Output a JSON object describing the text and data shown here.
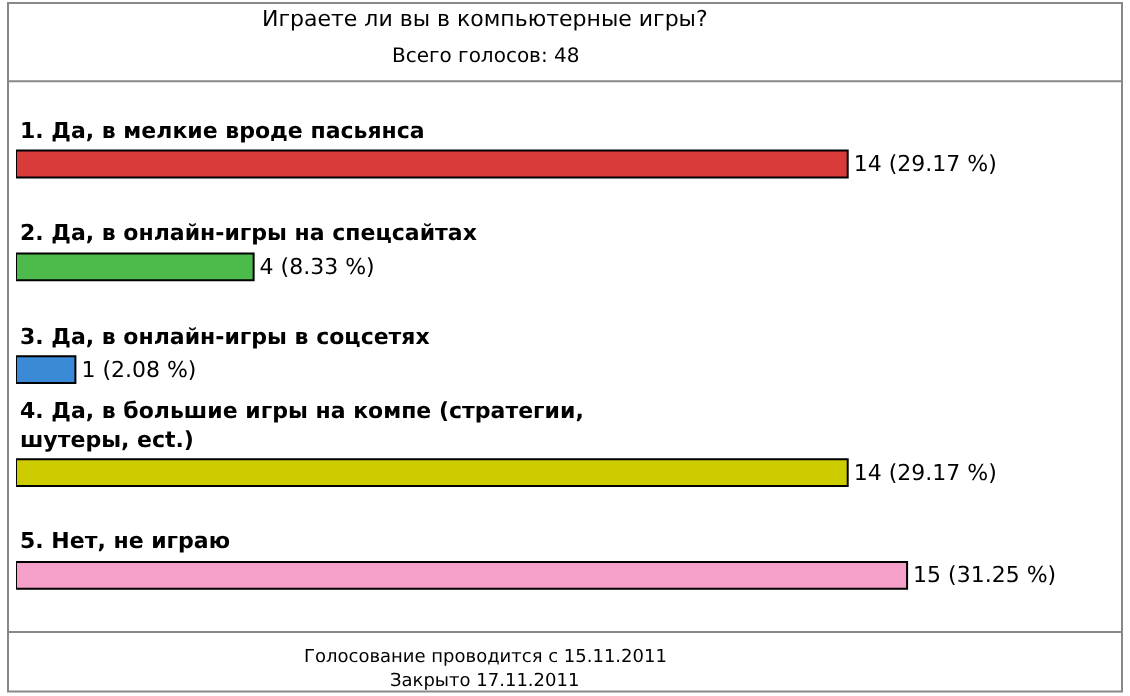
{
  "chart_data": {
    "type": "bar",
    "orientation": "horizontal",
    "title": "Играете ли вы в компьютерные игры?",
    "subtitle": "Всего голосов: 48",
    "categories": [
      "1. Да, в мелкие вроде пасьянса",
      "2. Да, в онлайн-игры на спецсайтах",
      "3. Да, в онлайн-игры в соцсетях",
      "4. Да, в большие игры на компе (стратегии,\nшутеры, ect.)",
      "5. Нет, не играю"
    ],
    "values": [
      14,
      4,
      1,
      14,
      15
    ],
    "colors": [
      "#d93a3a",
      "#4cbb4c",
      "#3a8ad6",
      "#cccc00",
      "#f5a0c8"
    ],
    "value_labels": [
      "14 (29.17 %)",
      "4 (8.33 %)",
      "1 (2.08 %)",
      "14 (29.17 %)",
      "15 (31.25 %)"
    ],
    "annotations": [
      "Голосование проводится с 15.11.2011",
      "Закрыто 17.11.2011"
    ],
    "legend": false
  }
}
